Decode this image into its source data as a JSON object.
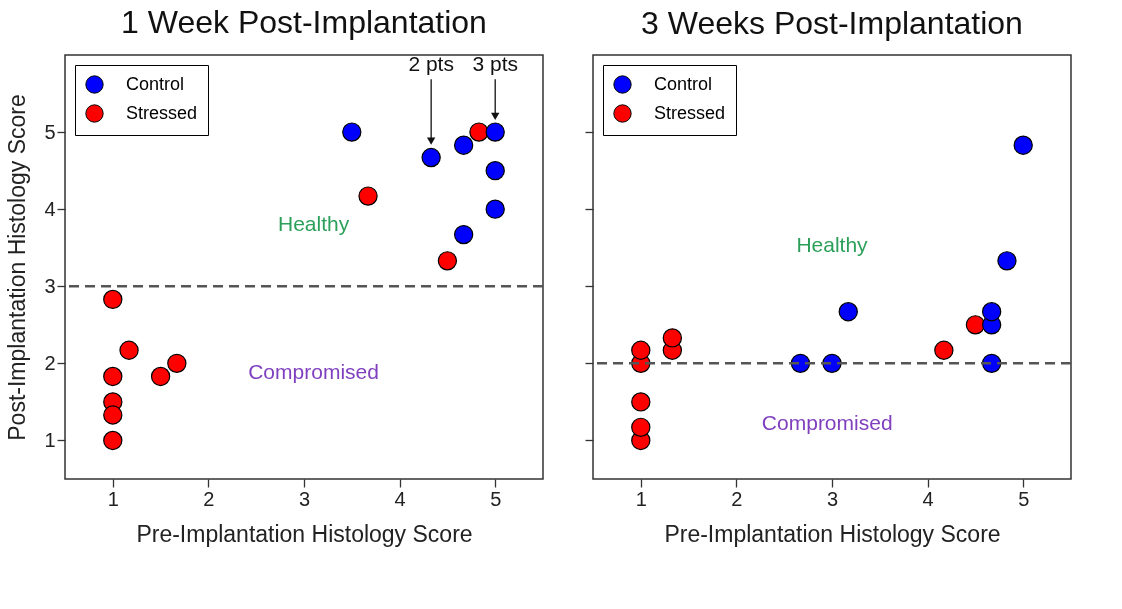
{
  "chart_data": [
    {
      "type": "scatter",
      "title": "1 Week Post-Implantation",
      "xlabel": "Pre-Implantation Histology Score",
      "ylabel": "Post-Implantation Histology Score",
      "xlim": [
        0.5,
        5.5
      ],
      "xticks": [
        1,
        2,
        3,
        4,
        5
      ],
      "ylim": [
        0.5,
        6
      ],
      "yticks": [
        1,
        2,
        3,
        4,
        5
      ],
      "marker": "circle",
      "legend": "top left",
      "series": [
        {
          "name": "Control",
          "color": "#0000ff",
          "x": [
            3.5,
            4.33,
            4.67,
            5,
            5,
            5,
            4.67
          ],
          "values": [
            5,
            4.67,
            4.83,
            5,
            4.5,
            4,
            3.67
          ]
        },
        {
          "name": "Stressed",
          "color": "#ff0000",
          "x": [
            3.67,
            4.83,
            4.5,
            1,
            1.17,
            1,
            1.5,
            1.67,
            1,
            1,
            1
          ],
          "values": [
            4.17,
            5,
            3.33,
            2.83,
            2.17,
            1.83,
            1.83,
            2,
            1.5,
            1.33,
            1
          ]
        }
      ],
      "ref_lines": [
        {
          "axis": "y",
          "value": 3,
          "color": "#555555",
          "line_style": "dashed"
        }
      ],
      "annotations": [
        "Healthy",
        "Compromised",
        "2 pts",
        "3 pts"
      ]
    },
    {
      "type": "scatter",
      "title": "3 Weeks Post-Implantation",
      "xlabel": "Pre-Implantation Histology Score",
      "xlim": [
        0.5,
        5.5
      ],
      "xticks": [
        1,
        2,
        3,
        4,
        5
      ],
      "ylim": [
        0.5,
        6
      ],
      "yticks": [
        1,
        2,
        3,
        4,
        5
      ],
      "tick_labels": "x",
      "marker": "circle",
      "legend": "top left",
      "series": [
        {
          "name": "Control",
          "color": "#0000ff",
          "x": [
            2.67,
            3,
            3.17,
            4.67,
            4.67,
            4.67,
            4.83,
            5
          ],
          "values": [
            2,
            2,
            2.67,
            2,
            2.5,
            2.67,
            3.33,
            4.83
          ]
        },
        {
          "name": "Stressed",
          "color": "#ff0000",
          "x": [
            1,
            1,
            1,
            1,
            1,
            1.33,
            1.33,
            4.17,
            4.5
          ],
          "values": [
            1,
            1.17,
            1.5,
            2,
            2.17,
            2.17,
            2.33,
            2.17,
            2.5
          ]
        }
      ],
      "ref_lines": [
        {
          "axis": "y",
          "value": 2,
          "color": "#555555",
          "line_style": "dashed"
        }
      ],
      "annotations": [
        "Healthy",
        "Compromised"
      ]
    }
  ]
}
